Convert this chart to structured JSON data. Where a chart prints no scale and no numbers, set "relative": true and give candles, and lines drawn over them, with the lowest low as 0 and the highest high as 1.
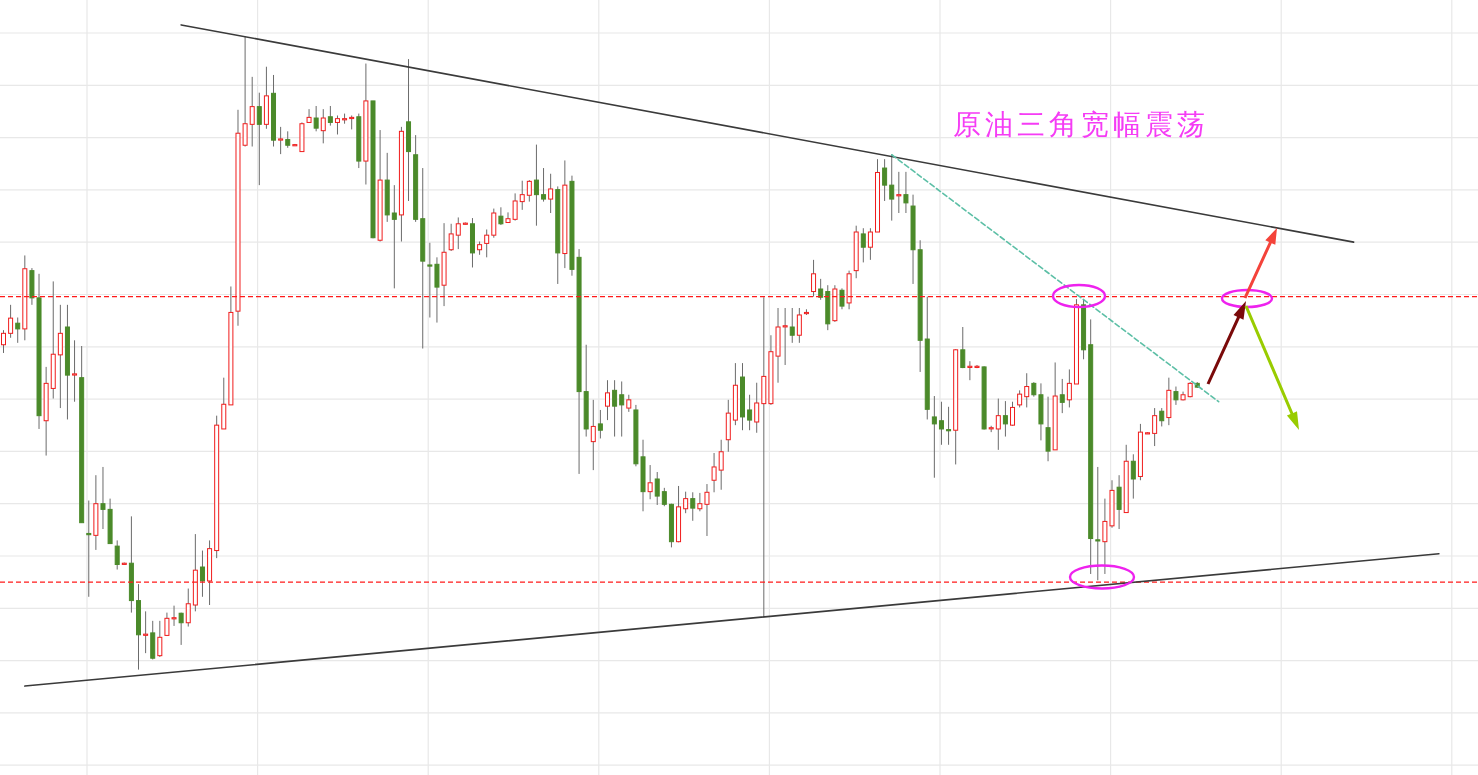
{
  "chart_data": {
    "type": "candlestick",
    "relative": true,
    "title": "原油三角宽幅震荡",
    "grid": true,
    "tick_labels": false,
    "categories": [
      null,
      null,
      null,
      null,
      null,
      null,
      null,
      null,
      null,
      null,
      null,
      null,
      null,
      null,
      null,
      null,
      null,
      null,
      null,
      null,
      null,
      null,
      null,
      null,
      null,
      null,
      null,
      null,
      null,
      null,
      null,
      null,
      null,
      null,
      null,
      null,
      null,
      null,
      null,
      null,
      null,
      null,
      null,
      null,
      null,
      null,
      null,
      null,
      null,
      null,
      null,
      null,
      null,
      null,
      null,
      null,
      null,
      null,
      null,
      null,
      null,
      null,
      null,
      null,
      null,
      null,
      null,
      null,
      null,
      null,
      null,
      null,
      null,
      null,
      null,
      null,
      null,
      null,
      null,
      null,
      null,
      null,
      null,
      null,
      null,
      null,
      null,
      null,
      null,
      null,
      null,
      null,
      null,
      null,
      null,
      null,
      null,
      null,
      null,
      null,
      null,
      null,
      null,
      null,
      null,
      null,
      null,
      null,
      null,
      null,
      null,
      null,
      null,
      null,
      null,
      null,
      null,
      null,
      null,
      null,
      null,
      null,
      null,
      null,
      null,
      null,
      null,
      null,
      null,
      null,
      null,
      null,
      null,
      null,
      null,
      null,
      null,
      null,
      null,
      null,
      null,
      null,
      null,
      null,
      null,
      null,
      null,
      null,
      null,
      null,
      null,
      null,
      null,
      null,
      null,
      null,
      null,
      null,
      null,
      null,
      null,
      null,
      null,
      null,
      null,
      null,
      null,
      null,
      null,
      null,
      null,
      null,
      null,
      null,
      null,
      null,
      null,
      null,
      null,
      null,
      null,
      null,
      null,
      null,
      null,
      null,
      null,
      null,
      null,
      null,
      null,
      null,
      null,
      null,
      null,
      null,
      null,
      null,
      null,
      null,
      null,
      null,
      null,
      null,
      null,
      null,
      null,
      null
    ],
    "ohlc": [
      [
        0.513,
        0.536,
        0.5,
        0.531
      ],
      [
        0.531,
        0.576,
        0.524,
        0.555
      ],
      [
        0.547,
        0.556,
        0.516,
        0.538
      ],
      [
        0.538,
        0.654,
        0.52,
        0.633
      ],
      [
        0.63,
        0.634,
        0.576,
        0.587
      ],
      [
        0.587,
        0.625,
        0.38,
        0.401
      ],
      [
        0.393,
        0.478,
        0.338,
        0.452
      ],
      [
        0.444,
        0.613,
        0.428,
        0.498
      ],
      [
        0.497,
        0.576,
        0.413,
        0.531
      ],
      [
        0.541,
        0.576,
        0.395,
        0.465
      ],
      [
        0.466,
        0.52,
        0.423,
        0.467
      ],
      [
        0.461,
        0.511,
        0.232,
        0.232
      ],
      [
        0.215,
        0.267,
        0.115,
        0.213
      ],
      [
        0.212,
        0.307,
        0.189,
        0.262
      ],
      [
        0.262,
        0.32,
        0.222,
        0.253
      ],
      [
        0.253,
        0.27,
        0.199,
        0.199
      ],
      [
        0.195,
        0.204,
        0.158,
        0.166
      ],
      [
        0.167,
        0.169,
        0.166,
        0.168
      ],
      [
        0.168,
        0.242,
        0.09,
        0.109
      ],
      [
        0.109,
        0.135,
        0,
        0.055
      ],
      [
        0.055,
        0.092,
        0.026,
        0.056
      ],
      [
        0.058,
        0.077,
        0.016,
        0.018
      ],
      [
        0.022,
        0.077,
        0.02,
        0.051
      ],
      [
        0.054,
        0.09,
        0.053,
        0.081
      ],
      [
        0.081,
        0.101,
        0.069,
        0.082
      ],
      [
        0.089,
        0.09,
        0.039,
        0.074
      ],
      [
        0.074,
        0.128,
        0.068,
        0.104
      ],
      [
        0.102,
        0.214,
        0.092,
        0.157
      ],
      [
        0.162,
        0.188,
        0.115,
        0.14
      ],
      [
        0.14,
        0.204,
        0.102,
        0.191
      ],
      [
        0.188,
        0.401,
        0.176,
        0.386
      ],
      [
        0.38,
        0.461,
        0.38,
        0.419
      ],
      [
        0.418,
        0.605,
        0.418,
        0.564
      ],
      [
        0.566,
        0.884,
        0.543,
        0.847
      ],
      [
        0.828,
        1,
        0.826,
        0.862
      ],
      [
        0.861,
        0.936,
        0.826,
        0.889
      ],
      [
        0.889,
        0.911,
        0.765,
        0.861
      ],
      [
        0.861,
        0.952,
        0.854,
        0.906
      ],
      [
        0.91,
        0.939,
        0.826,
        0.836
      ],
      [
        0.837,
        0.857,
        0.814,
        0.838
      ],
      [
        0.837,
        0.85,
        0.824,
        0.828
      ],
      [
        0.828,
        0.83,
        0.827,
        0.829
      ],
      [
        0.818,
        0.864,
        0.818,
        0.862
      ],
      [
        0.864,
        0.885,
        0.864,
        0.872
      ],
      [
        0.871,
        0.89,
        0.85,
        0.855
      ],
      [
        0.851,
        0.885,
        0.831,
        0.871
      ],
      [
        0.873,
        0.89,
        0.859,
        0.864
      ],
      [
        0.864,
        0.875,
        0.845,
        0.87
      ],
      [
        0.869,
        0.878,
        0.862,
        0.87
      ],
      [
        0.871,
        0.875,
        0.853,
        0.872
      ],
      [
        0.873,
        0.878,
        0.792,
        0.803
      ],
      [
        0.803,
        0.957,
        0.766,
        0.898
      ],
      [
        0.898,
        0.898,
        0.681,
        0.682
      ],
      [
        0.678,
        0.852,
        0.676,
        0.773
      ],
      [
        0.773,
        0.816,
        0.707,
        0.718
      ],
      [
        0.721,
        0.765,
        0.602,
        0.711
      ],
      [
        0.718,
        0.857,
        0.676,
        0.85
      ],
      [
        0.865,
        0.964,
        0.74,
        0.818
      ],
      [
        0.813,
        0.844,
        0.707,
        0.711
      ],
      [
        0.712,
        0.792,
        0.507,
        0.645
      ],
      [
        0.639,
        0.674,
        0.556,
        0.638
      ],
      [
        0.64,
        0.651,
        0.548,
        0.604
      ],
      [
        0.607,
        0.705,
        0.574,
        0.659
      ],
      [
        0.663,
        0.704,
        0.661,
        0.688
      ],
      [
        0.686,
        0.714,
        0.664,
        0.704
      ],
      [
        0.704,
        0.706,
        0.703,
        0.705
      ],
      [
        0.704,
        0.713,
        0.635,
        0.658
      ],
      [
        0.663,
        0.676,
        0.655,
        0.671
      ],
      [
        0.673,
        0.695,
        0.651,
        0.686
      ],
      [
        0.686,
        0.728,
        0.682,
        0.721
      ],
      [
        0.716,
        0.73,
        0.702,
        0.704
      ],
      [
        0.706,
        0.722,
        0.706,
        0.712
      ],
      [
        0.711,
        0.752,
        0.709,
        0.74
      ],
      [
        0.739,
        0.772,
        0.726,
        0.75
      ],
      [
        0.749,
        0.773,
        0.739,
        0.771
      ],
      [
        0.773,
        0.829,
        0.701,
        0.75
      ],
      [
        0.75,
        0.792,
        0.739,
        0.743
      ],
      [
        0.743,
        0.783,
        0.721,
        0.759
      ],
      [
        0.758,
        0.763,
        0.609,
        0.658
      ],
      [
        0.657,
        0.804,
        0.634,
        0.765
      ],
      [
        0.771,
        0.78,
        0.622,
        0.632
      ],
      [
        0.651,
        0.664,
        0.309,
        0.439
      ],
      [
        0.439,
        0.513,
        0.368,
        0.38
      ],
      [
        0.36,
        0.426,
        0.315,
        0.384
      ],
      [
        0.388,
        0.41,
        0.365,
        0.378
      ],
      [
        0.416,
        0.457,
        0.394,
        0.437
      ],
      [
        0.441,
        0.457,
        0.368,
        0.416
      ],
      [
        0.434,
        0.455,
        0.368,
        0.418
      ],
      [
        0.413,
        0.434,
        0.407,
        0.426
      ],
      [
        0.41,
        0.418,
        0.321,
        0.325
      ],
      [
        0.336,
        0.363,
        0.25,
        0.281
      ],
      [
        0.281,
        0.323,
        0.269,
        0.295
      ],
      [
        0.301,
        0.312,
        0.26,
        0.274
      ],
      [
        0.281,
        0.287,
        0.258,
        0.261
      ],
      [
        0.261,
        0.262,
        0.193,
        0.202
      ],
      [
        0.202,
        0.29,
        0.201,
        0.257
      ],
      [
        0.254,
        0.281,
        0.247,
        0.27
      ],
      [
        0.27,
        0.28,
        0.235,
        0.255
      ],
      [
        0.254,
        0.279,
        0.25,
        0.262
      ],
      [
        0.261,
        0.293,
        0.211,
        0.28
      ],
      [
        0.299,
        0.342,
        0.28,
        0.32
      ],
      [
        0.315,
        0.363,
        0.284,
        0.344
      ],
      [
        0.363,
        0.426,
        0.344,
        0.405
      ],
      [
        0.394,
        0.484,
        0.386,
        0.449
      ],
      [
        0.462,
        0.484,
        0.378,
        0.399
      ],
      [
        0.41,
        0.434,
        0.378,
        0.394
      ],
      [
        0.391,
        0.453,
        0.374,
        0.421
      ],
      [
        0.42,
        0.588,
        0.083,
        0.463
      ],
      [
        0.42,
        0.528,
        0.418,
        0.502
      ],
      [
        0.495,
        0.571,
        0.453,
        0.541
      ],
      [
        0.542,
        0.571,
        0.481,
        0.543
      ],
      [
        0.541,
        0.571,
        0.516,
        0.528
      ],
      [
        0.528,
        0.571,
        0.516,
        0.56
      ],
      [
        0.563,
        0.569,
        0.56,
        0.564
      ],
      [
        0.597,
        0.647,
        0.589,
        0.625
      ],
      [
        0.601,
        0.617,
        0.584,
        0.588
      ],
      [
        0.597,
        0.607,
        0.536,
        0.546
      ],
      [
        0.551,
        0.607,
        0.549,
        0.601
      ],
      [
        0.599,
        0.602,
        0.569,
        0.574
      ],
      [
        0.579,
        0.63,
        0.569,
        0.625
      ],
      [
        0.63,
        0.701,
        0.618,
        0.691
      ],
      [
        0.688,
        0.697,
        0.643,
        0.667
      ],
      [
        0.667,
        0.697,
        0.647,
        0.691
      ],
      [
        0.691,
        0.806,
        0.691,
        0.785
      ],
      [
        0.792,
        0.806,
        0.74,
        0.765
      ],
      [
        0.765,
        0.814,
        0.709,
        0.743
      ],
      [
        0.749,
        0.786,
        0.721,
        0.75
      ],
      [
        0.75,
        0.786,
        0.721,
        0.737
      ],
      [
        0.732,
        0.75,
        0.609,
        0.663
      ],
      [
        0.663,
        0.678,
        0.47,
        0.52
      ],
      [
        0.522,
        0.589,
        0.395,
        0.411
      ],
      [
        0.399,
        0.432,
        0.303,
        0.388
      ],
      [
        0.393,
        0.423,
        0.355,
        0.38
      ],
      [
        0.379,
        0.415,
        0.355,
        0.378
      ],
      [
        0.378,
        0.506,
        0.324,
        0.505
      ],
      [
        0.505,
        0.541,
        0.476,
        0.477
      ],
      [
        0.478,
        0.487,
        0.457,
        0.479
      ],
      [
        0.478,
        0.481,
        0.476,
        0.479
      ],
      [
        0.478,
        0.479,
        0.379,
        0.38
      ],
      [
        0.381,
        0.385,
        0.375,
        0.382
      ],
      [
        0.38,
        0.428,
        0.347,
        0.401
      ],
      [
        0.401,
        0.424,
        0.368,
        0.388
      ],
      [
        0.386,
        0.423,
        0.385,
        0.414
      ],
      [
        0.418,
        0.441,
        0.414,
        0.435
      ],
      [
        0.431,
        0.468,
        0.414,
        0.447
      ],
      [
        0.452,
        0.454,
        0.431,
        0.434
      ],
      [
        0.434,
        0.452,
        0.362,
        0.388
      ],
      [
        0.382,
        0.431,
        0.329,
        0.345
      ],
      [
        0.347,
        0.485,
        0.347,
        0.432
      ],
      [
        0.434,
        0.459,
        0.405,
        0.422
      ],
      [
        0.426,
        0.474,
        0.414,
        0.452
      ],
      [
        0.451,
        0.585,
        0.451,
        0.576
      ],
      [
        0.576,
        0.585,
        0.49,
        0.505
      ],
      [
        0.513,
        0.553,
        0.151,
        0.207
      ],
      [
        0.205,
        0.32,
        0.141,
        0.204
      ],
      [
        0.202,
        0.27,
        0.151,
        0.234
      ],
      [
        0.227,
        0.299,
        0.224,
        0.283
      ],
      [
        0.288,
        0.307,
        0.222,
        0.253
      ],
      [
        0.248,
        0.355,
        0.248,
        0.329
      ],
      [
        0.329,
        0.34,
        0.27,
        0.301
      ],
      [
        0.305,
        0.388,
        0.299,
        0.375
      ],
      [
        0.373,
        0.375,
        0.372,
        0.374
      ],
      [
        0.373,
        0.413,
        0.353,
        0.401
      ],
      [
        0.408,
        0.413,
        0.384,
        0.393
      ],
      [
        0.398,
        0.461,
        0.386,
        0.441
      ],
      [
        0.439,
        0.447,
        0.418,
        0.426
      ],
      [
        0.426,
        0.439,
        0.425,
        0.434
      ],
      [
        0.431,
        0.454,
        0.43,
        0.452
      ],
      [
        0.452,
        0.454,
        0.445,
        0.446
      ],
      null,
      null,
      null,
      null,
      null,
      null,
      null,
      null,
      null,
      null,
      null,
      null,
      null,
      null,
      null,
      null,
      null,
      null,
      null,
      null,
      null,
      null,
      null,
      null,
      null,
      null,
      null,
      null,
      null,
      null,
      null,
      null,
      null,
      null,
      null,
      null,
      null,
      null,
      null
    ],
    "series": [
      {
        "type": "line",
        "color": "#3a3a3a",
        "line_style": "solid",
        "values": [
          null,
          null,
          null,
          null,
          null,
          null,
          null,
          null,
          null,
          null,
          null,
          null,
          null,
          null,
          null,
          null,
          null,
          null,
          null,
          null,
          null,
          null,
          null,
          null,
          null,
          1.018,
          null,
          null,
          null,
          null,
          null,
          null,
          null,
          null,
          null,
          null,
          null,
          null,
          null,
          null,
          null,
          null,
          null,
          null,
          null,
          null,
          null,
          null,
          null,
          null,
          null,
          null,
          null,
          null,
          null,
          null,
          null,
          null,
          null,
          null,
          null,
          null,
          null,
          null,
          null,
          null,
          null,
          null,
          null,
          null,
          null,
          null,
          null,
          null,
          null,
          null,
          null,
          null,
          null,
          null,
          null,
          null,
          null,
          null,
          null,
          null,
          null,
          null,
          null,
          null,
          null,
          null,
          null,
          null,
          null,
          null,
          null,
          null,
          null,
          null,
          null,
          null,
          null,
          null,
          null,
          null,
          null,
          null,
          null,
          null,
          null,
          null,
          null,
          null,
          null,
          null,
          null,
          null,
          null,
          null,
          null,
          null,
          null,
          null,
          null,
          null,
          null,
          null,
          null,
          null,
          null,
          null,
          null,
          null,
          null,
          null,
          null,
          null,
          null,
          null,
          null,
          null,
          null,
          null,
          null,
          null,
          null,
          null,
          null,
          null,
          null,
          null,
          null,
          null,
          null,
          null,
          null,
          null,
          null,
          null,
          null,
          null,
          null,
          null,
          null,
          null,
          null,
          null,
          null,
          null,
          null,
          null,
          null,
          null,
          null,
          null,
          null,
          null,
          null,
          null,
          null,
          null,
          null,
          null,
          null,
          null,
          null,
          null,
          null,
          null,
          0.675,
          null,
          null,
          null,
          null,
          null,
          null,
          null,
          null,
          null,
          null,
          null,
          null,
          null,
          null,
          null,
          null,
          null
        ]
      },
      {
        "type": "line",
        "color": "#3a3a3a",
        "line_style": "solid",
        "values": [
          null,
          null,
          null,
          -0.026,
          null,
          null,
          null,
          null,
          null,
          null,
          null,
          null,
          null,
          null,
          null,
          null,
          null,
          null,
          null,
          null,
          null,
          null,
          null,
          null,
          null,
          null,
          null,
          null,
          null,
          null,
          null,
          null,
          null,
          null,
          null,
          null,
          null,
          null,
          null,
          null,
          null,
          null,
          null,
          null,
          null,
          null,
          null,
          null,
          null,
          null,
          null,
          null,
          null,
          null,
          null,
          null,
          null,
          null,
          null,
          null,
          null,
          null,
          null,
          null,
          null,
          null,
          null,
          null,
          null,
          null,
          null,
          null,
          null,
          null,
          null,
          null,
          null,
          null,
          null,
          null,
          null,
          null,
          null,
          null,
          null,
          null,
          null,
          null,
          null,
          null,
          null,
          null,
          null,
          null,
          null,
          null,
          null,
          null,
          null,
          null,
          null,
          null,
          null,
          null,
          null,
          null,
          null,
          null,
          null,
          null,
          null,
          null,
          null,
          null,
          null,
          null,
          null,
          null,
          null,
          null,
          null,
          null,
          null,
          null,
          null,
          null,
          null,
          null,
          null,
          null,
          null,
          null,
          null,
          null,
          null,
          null,
          null,
          null,
          null,
          null,
          null,
          null,
          null,
          null,
          null,
          null,
          null,
          null,
          null,
          null,
          null,
          null,
          null,
          null,
          null,
          null,
          null,
          null,
          null,
          null,
          null,
          null,
          null,
          null,
          null,
          null,
          null,
          null,
          null,
          null,
          null,
          null,
          null,
          null,
          null,
          null,
          null,
          null,
          null,
          null,
          null,
          null,
          null,
          null,
          null,
          null,
          null,
          null,
          null,
          null,
          null,
          null,
          null,
          null,
          null,
          null,
          null,
          null,
          null,
          null,
          null,
          null,
          0.183,
          null,
          null,
          null,
          null,
          null
        ]
      },
      {
        "type": "line",
        "color": "#5cbfa6",
        "line_style": "dashed",
        "values": [
          null,
          null,
          null,
          null,
          null,
          null,
          null,
          null,
          null,
          null,
          null,
          null,
          null,
          null,
          null,
          null,
          null,
          null,
          null,
          null,
          null,
          null,
          null,
          null,
          null,
          null,
          null,
          null,
          null,
          null,
          null,
          null,
          null,
          null,
          null,
          null,
          null,
          null,
          null,
          null,
          null,
          null,
          null,
          null,
          null,
          null,
          null,
          null,
          null,
          null,
          null,
          null,
          null,
          null,
          null,
          null,
          null,
          null,
          null,
          null,
          null,
          null,
          null,
          null,
          null,
          null,
          null,
          null,
          null,
          null,
          null,
          null,
          null,
          null,
          null,
          null,
          null,
          null,
          null,
          null,
          null,
          null,
          null,
          null,
          null,
          null,
          null,
          null,
          null,
          null,
          null,
          null,
          null,
          null,
          null,
          null,
          null,
          null,
          null,
          null,
          null,
          null,
          null,
          null,
          null,
          null,
          null,
          null,
          null,
          null,
          null,
          null,
          null,
          null,
          null,
          null,
          null,
          null,
          null,
          null,
          null,
          null,
          null,
          null,
          null,
          0.813,
          null,
          null,
          null,
          null,
          null,
          null,
          null,
          null,
          null,
          null,
          null,
          null,
          null,
          null,
          null,
          null,
          null,
          null,
          null,
          null,
          null,
          null,
          null,
          null,
          null,
          null,
          null,
          null,
          null,
          null,
          null,
          null,
          null,
          null,
          null,
          null,
          null,
          null,
          null,
          null,
          null,
          null,
          null,
          null,
          null,
          0.423,
          null,
          null,
          null,
          null,
          null,
          null,
          null,
          null,
          null,
          null,
          null,
          null,
          null,
          null,
          null,
          null,
          null,
          null,
          null,
          null,
          null,
          null,
          null,
          null,
          null,
          null,
          null,
          null,
          null,
          null,
          null,
          null,
          null,
          null,
          null,
          null
        ]
      }
    ],
    "ref_lines": [
      {
        "axis": "y",
        "value": 0.589,
        "color": "#ff1a1a",
        "line_style": "dashed"
      },
      {
        "axis": "y",
        "value": 0.138,
        "color": "#ff1a1a",
        "line_style": "dashed"
      }
    ]
  }
}
